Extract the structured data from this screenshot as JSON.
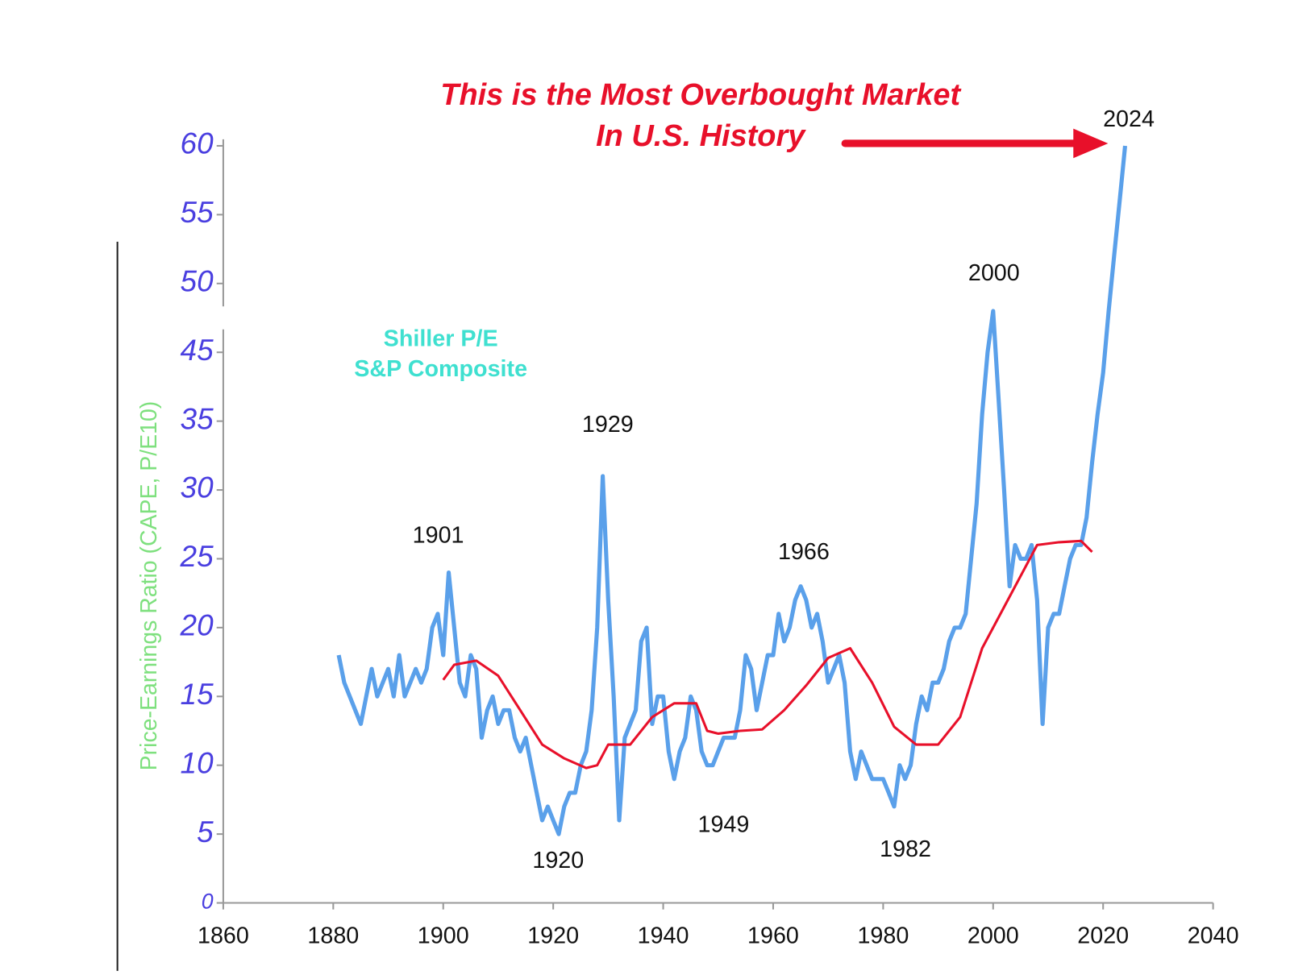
{
  "chart_data": {
    "type": "line",
    "title": [
      "This is the Most Overbought Market",
      "In U.S. History"
    ],
    "y_label": "Price-Earnings Ratio (CAPE, P/E10)",
    "legend_text": [
      "Shiller P/E",
      "S&P Composite"
    ],
    "annotations": [
      "1901",
      "1929",
      "1920",
      "1949",
      "1966",
      "1982",
      "2000",
      "2024"
    ],
    "xlim": [
      1860,
      2040
    ],
    "xticks": [
      1860,
      1880,
      1900,
      1920,
      1940,
      1960,
      1980,
      2000,
      2020,
      2040
    ],
    "ylim": [
      0,
      60
    ],
    "yticks": [
      0,
      5,
      10,
      15,
      20,
      25,
      30,
      35,
      45,
      50,
      55,
      60
    ],
    "y_axis_break": true,
    "series": [
      {
        "color": "#5aa0ea",
        "x": [
          1881,
          1882,
          1884,
          1885,
          1886,
          1887,
          1888,
          1889,
          1890,
          1891,
          1892,
          1893,
          1894,
          1895,
          1896,
          1897,
          1898,
          1899,
          1900,
          1901,
          1902,
          1903,
          1904,
          1905,
          1906,
          1907,
          1908,
          1909,
          1910,
          1911,
          1912,
          1913,
          1914,
          1915,
          1916,
          1917,
          1918,
          1919,
          1920,
          1921,
          1922,
          1923,
          1924,
          1925,
          1926,
          1927,
          1928,
          1929,
          1930,
          1931,
          1932,
          1933,
          1934,
          1935,
          1936,
          1937,
          1938,
          1939,
          1940,
          1941,
          1942,
          1943,
          1944,
          1945,
          1946,
          1947,
          1948,
          1949,
          1950,
          1951,
          1952,
          1953,
          1954,
          1955,
          1956,
          1957,
          1958,
          1959,
          1960,
          1961,
          1962,
          1963,
          1964,
          1965,
          1966,
          1967,
          1968,
          1969,
          1970,
          1971,
          1972,
          1973,
          1974,
          1975,
          1976,
          1977,
          1978,
          1979,
          1980,
          1981,
          1982,
          1983,
          1984,
          1985,
          1986,
          1987,
          1988,
          1989,
          1990,
          1991,
          1992,
          1993,
          1994,
          1995,
          1996,
          1997,
          1998,
          1999,
          2000,
          2001,
          2002,
          2003,
          2004,
          2005,
          2006,
          2007,
          2008,
          2009,
          2010,
          2011,
          2012,
          2013,
          2014,
          2015,
          2016,
          2017,
          2018,
          2019,
          2020,
          2021,
          2022,
          2023,
          2024
        ],
        "values": [
          18,
          16,
          14,
          13,
          15,
          17,
          15,
          16,
          17,
          15,
          18,
          15,
          16,
          17,
          16,
          17,
          20,
          21,
          18,
          24,
          20,
          16,
          15,
          18,
          17,
          12,
          14,
          15,
          13,
          14,
          14,
          12,
          11,
          12,
          10,
          8,
          6,
          7,
          6,
          5,
          7,
          8,
          8,
          10,
          11,
          14,
          20,
          31,
          22,
          15,
          6,
          12,
          13,
          14,
          19,
          20,
          13,
          15,
          15,
          11,
          9,
          11,
          12,
          15,
          14,
          11,
          10,
          10,
          11,
          12,
          12,
          12,
          14,
          18,
          17,
          14,
          16,
          18,
          18,
          21,
          19,
          20,
          22,
          23,
          22,
          20,
          21,
          19,
          16,
          17,
          18,
          16,
          11,
          9,
          11,
          10,
          9,
          9,
          9,
          8,
          7,
          10,
          9,
          10,
          13,
          15,
          14,
          16,
          16,
          17,
          19,
          20,
          20,
          21,
          25,
          29,
          36,
          45,
          48,
          38,
          30,
          23,
          26,
          25,
          25,
          26,
          22,
          13,
          20,
          21,
          21,
          23,
          25,
          26,
          26,
          28,
          32,
          36,
          42,
          48,
          52,
          56,
          60
        ]
      },
      {
        "color": "#e8102a",
        "x": [
          1900,
          1902,
          1906,
          1910,
          1914,
          1918,
          1922,
          1926,
          1928,
          1930,
          1934,
          1938,
          1942,
          1946,
          1948,
          1950,
          1954,
          1958,
          1962,
          1966,
          1970,
          1974,
          1978,
          1982,
          1986,
          1990,
          1994,
          1998,
          2002,
          2006,
          2008,
          2012,
          2016,
          2018
        ],
        "values": [
          16.2,
          17.3,
          17.6,
          16.5,
          14,
          11.5,
          10.5,
          9.8,
          10,
          11.5,
          11.5,
          13.5,
          14.5,
          14.5,
          12.5,
          12.3,
          12.5,
          12.6,
          14,
          15.8,
          17.8,
          18.5,
          16,
          12.8,
          11.5,
          11.5,
          13.5,
          18.5,
          21.5,
          24.5,
          26,
          26.2,
          26.3,
          25.5
        ]
      }
    ]
  }
}
